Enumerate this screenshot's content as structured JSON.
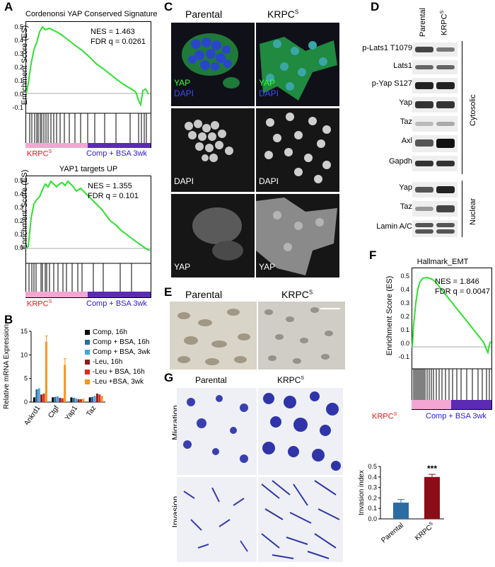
{
  "panel_labels": {
    "a": "A",
    "b": "B",
    "c": "C",
    "d": "D",
    "e": "E",
    "f": "F",
    "g": "G"
  },
  "gsea_top": {
    "title": "Cordenonsi YAP Conserved Signature",
    "ylabel": "Enrichment Score (ES)",
    "ticks": [
      "0.5",
      "0.4",
      "0.3",
      "0.2",
      "0.1",
      "0.0",
      "-0.1"
    ],
    "nes": "NES = 1.463",
    "fdr": "FDR q = 0.0261",
    "left_label": "KRPC",
    "left_sup": "S",
    "right_label": "Comp + BSA 3wk"
  },
  "gsea_mid": {
    "title": "YAP1 targets UP",
    "ylabel": "Enrichment Score (ES)",
    "ticks": [
      "0.5",
      "0.4",
      "0.3",
      "0.2",
      "0.1",
      "0.0"
    ],
    "nes": "NES = 1.355",
    "fdr": "FDR q = 0.101",
    "left_label": "KRPC",
    "left_sup": "S",
    "right_label": "Comp + BSA 3wk"
  },
  "gsea_f": {
    "title": "Hallmark_EMT",
    "ylabel": "Enrichment Score (ES)",
    "ticks": [
      "0.5",
      "0.4",
      "0.3",
      "0.2",
      "0.1",
      "0.0",
      "-0.1"
    ],
    "nes": "NES = 1.846",
    "fdr": "FDR q = 0.0047",
    "left_label": "KRPC",
    "left_sup": "S",
    "right_label": "Comp + BSA 3wk"
  },
  "panel_c": {
    "col_parental": "Parental",
    "col_krpc": "KRPC",
    "col_sup": "S",
    "yap": "YAP",
    "dapi": "DAPI"
  },
  "panel_d": {
    "col_parental": "Parental",
    "col_krpc": "KRPC",
    "col_sup": "S",
    "rows": [
      "p-Lats1 T1079",
      "Lats1",
      "p-Yap S127",
      "Yap",
      "Taz",
      "Axl",
      "Gapdh",
      "Yap",
      "Taz",
      "Lamin A/C"
    ],
    "cytosolic": "Cytosolic",
    "nuclear": "Nuclear"
  },
  "panel_e": {
    "parental": "Parental",
    "krpc": "KRPC",
    "sup": "S"
  },
  "panel_g": {
    "parental": "Parental",
    "krpc": "KRPC",
    "sup": "S",
    "migration": "Migration",
    "invasion": "Invasion"
  },
  "bar_b": {
    "legend": [
      "Comp, 16h",
      "Comp + BSA, 16h",
      "Comp + BSA, 3wk",
      "-Leu, 16h",
      "-Leu + BSA, 16h",
      "-Leu +BSA, 3wk"
    ],
    "colors": [
      "#000000",
      "#2b6ca3",
      "#3fa7e0",
      "#8b1a1a",
      "#e02a1b",
      "#f7941d"
    ]
  },
  "chart_data": [
    {
      "type": "bar",
      "ylabel": "Relative mRNA Expression",
      "categories": [
        "Ankrd1",
        "Ctgf",
        "Yap1",
        "Taz"
      ],
      "ylim": [
        0,
        15
      ],
      "yticks": [
        0,
        5,
        10,
        15
      ],
      "series": [
        {
          "name": "Comp, 16h",
          "values": [
            1.0,
            1.0,
            1.0,
            1.0
          ]
        },
        {
          "name": "Comp + BSA, 16h",
          "values": [
            2.7,
            1.1,
            0.9,
            1.1
          ]
        },
        {
          "name": "Comp + BSA, 3wk",
          "values": [
            2.9,
            1.2,
            0.8,
            1.3
          ]
        },
        {
          "name": "-Leu, 16h",
          "values": [
            1.6,
            0.9,
            0.6,
            1.8
          ]
        },
        {
          "name": "-Leu + BSA, 16h",
          "values": [
            1.8,
            0.8,
            0.6,
            1.6
          ]
        },
        {
          "name": "-Leu +BSA, 3wk",
          "values": [
            12.8,
            7.9,
            0.7,
            1.3
          ]
        }
      ]
    },
    {
      "type": "bar",
      "ylabel": "Invasion index",
      "categories": [
        "Parental",
        "KRPC"
      ],
      "ylim": [
        0,
        0.5
      ],
      "yticks": [
        "0.0",
        "0.1",
        "0.2",
        "0.3",
        "0.4",
        "0.5"
      ],
      "values": [
        0.155,
        0.4
      ],
      "errors": [
        0.03,
        0.025
      ],
      "colors": [
        "#2b6ca3",
        "#8b0d18"
      ],
      "annotation": "***"
    }
  ]
}
